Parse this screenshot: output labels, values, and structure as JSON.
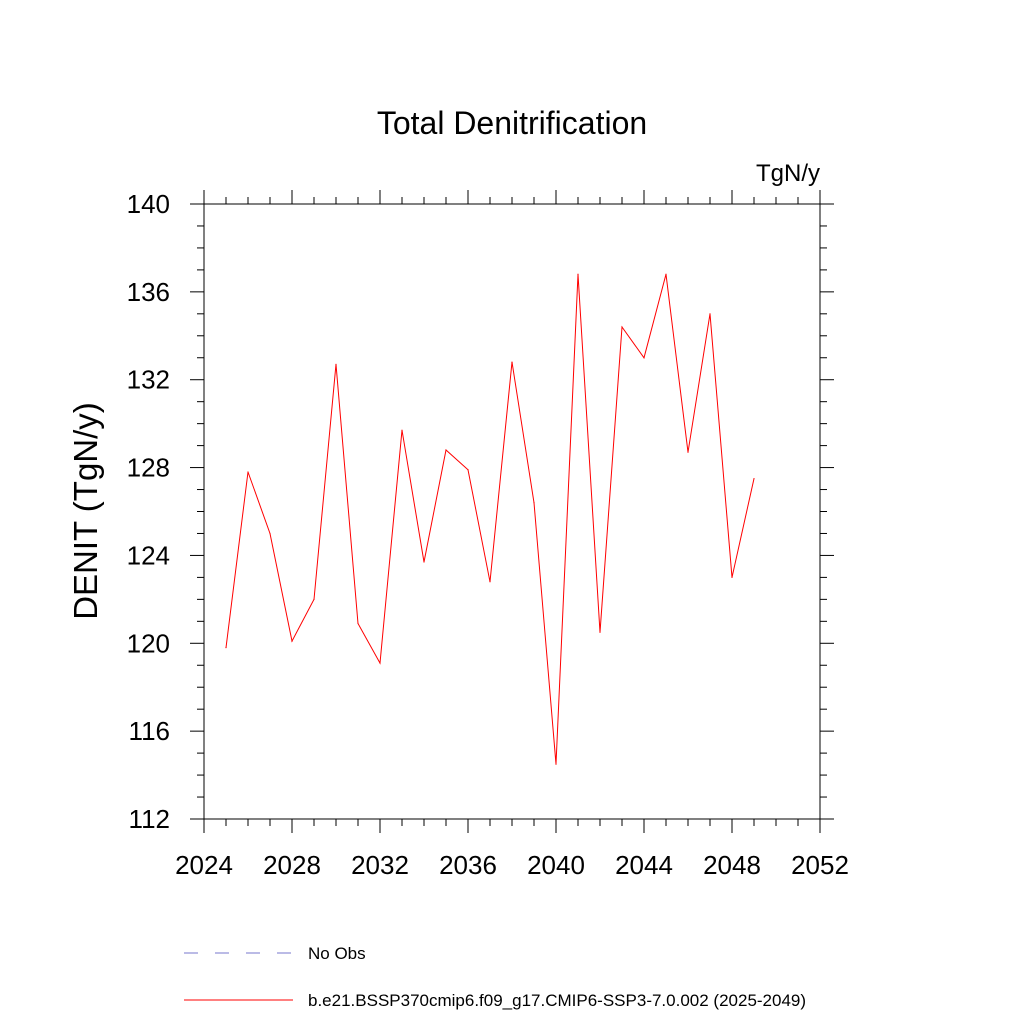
{
  "chart_data": {
    "type": "line",
    "title": "Total Denitrification",
    "units": "TgN/y",
    "xlabel": "",
    "ylabel": "DENIT  (TgN/y)",
    "xlim": [
      2024,
      2052
    ],
    "ylim": [
      112,
      140
    ],
    "x_ticks": [
      2024,
      2028,
      2032,
      2036,
      2040,
      2044,
      2048,
      2052
    ],
    "y_ticks": [
      112,
      116,
      120,
      124,
      128,
      132,
      136,
      140
    ],
    "x_tick_labels": [
      "2024",
      "2028",
      "2032",
      "2036",
      "2040",
      "2044",
      "2048",
      "2052"
    ],
    "y_tick_labels": [
      "112",
      "116",
      "120",
      "124",
      "128",
      "132",
      "136",
      "140"
    ],
    "grid": false,
    "legend_position": "bottom",
    "series": [
      {
        "name": "b.e21.BSSP370cmip6.f09_g17.CMIP6-SSP3-7.0.002 (2025-2049)",
        "color": "#ff0000",
        "style": "solid",
        "x": [
          2025,
          2026,
          2027,
          2028,
          2029,
          2030,
          2031,
          2032,
          2033,
          2034,
          2035,
          2036,
          2037,
          2038,
          2039,
          2040,
          2041,
          2042,
          2043,
          2044,
          2045,
          2046,
          2047,
          2048,
          2049
        ],
        "values": [
          119.8,
          127.8,
          125.0,
          120.1,
          122.0,
          132.7,
          120.9,
          119.1,
          129.7,
          123.7,
          128.8,
          127.9,
          122.8,
          132.8,
          126.4,
          114.5,
          136.8,
          120.5,
          134.4,
          133.0,
          136.8,
          128.7,
          135.0,
          123.0,
          127.5
        ]
      }
    ],
    "legend": [
      {
        "label": "No Obs",
        "color": "#7777cc",
        "style": "dashed"
      },
      {
        "label": "b.e21.BSSP370cmip6.f09_g17.CMIP6-SSP3-7.0.002 (2025-2049)",
        "color": "#ff0000",
        "style": "solid"
      }
    ]
  }
}
